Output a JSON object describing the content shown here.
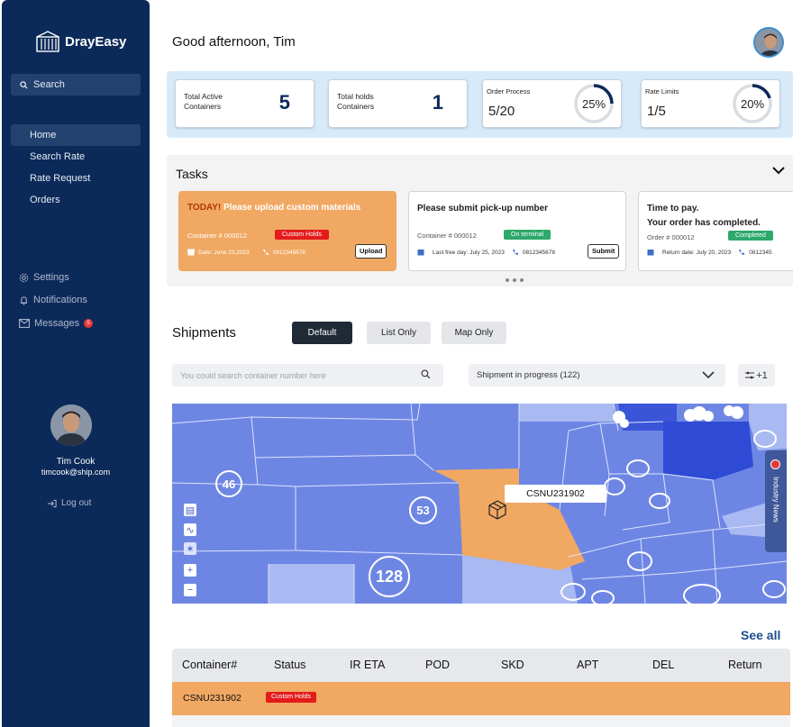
{
  "app": {
    "name": "DrayEasy"
  },
  "sidebar": {
    "search_label": "Search",
    "nav": [
      {
        "label": "Home",
        "active": true
      },
      {
        "label": "Search Rate"
      },
      {
        "label": "Rate Request"
      },
      {
        "label": "Orders"
      }
    ],
    "settings_label": "Settings",
    "notifications_label": "Notifications",
    "messages_label": "Messages",
    "messages_badge": "5",
    "user": {
      "name": "Tim Cook",
      "email": "timcook@ship.com"
    },
    "logout_label": "Log out"
  },
  "header": {
    "greeting": "Good afternoon, Tim"
  },
  "stats": [
    {
      "label": "Total Active Containers",
      "value": "5"
    },
    {
      "label": "Total holds Containers",
      "value": "1"
    },
    {
      "label": "Order Process",
      "value": "5/20",
      "percent_text": "25%",
      "percent": 25
    },
    {
      "label": "Rate Limits",
      "value": "1/5",
      "percent_text": "20%",
      "percent": 20
    }
  ],
  "tasks": {
    "title": "Tasks",
    "items": [
      {
        "prefix": "TODAY!",
        "title": "Please upload custom materials",
        "container": "Container # 000012",
        "status": "Custom Holds",
        "date": "Date: June 23,2023",
        "phone": "0812345678",
        "button": "Upload"
      },
      {
        "title": "Please submit pick-up number",
        "container": "Container # 000012",
        "status": "On terminal",
        "date": "Last free day: July 25, 2023",
        "phone": "0812345678",
        "button": "Submit"
      },
      {
        "title": "Time to pay.",
        "title2": "Your order has completed.",
        "container": "Order # 000012",
        "status": "Completed",
        "date": "Return date: July 20, 2023",
        "phone": "0812345"
      }
    ]
  },
  "shipments": {
    "title": "Shipments",
    "tabs": [
      "Default",
      "List Only",
      "Map Only"
    ],
    "search_placeholder": "You could search container number here",
    "filter_value": "Shipment in progress (122)",
    "filter_extra": "+1",
    "map": {
      "clusters": [
        "46",
        "53",
        "128"
      ],
      "tooltip": "CSNU231902",
      "news_label": "Industry News"
    },
    "see_all": "See all",
    "columns": [
      "Container#",
      "Status",
      "IR ETA",
      "POD",
      "SKD",
      "APT",
      "DEL",
      "Return"
    ],
    "rows": [
      {
        "container": "CSNU231902",
        "status": "Custom Holds"
      }
    ]
  },
  "colors": {
    "sidebar": "#0c2a59",
    "accent_orange": "#f0a862",
    "hold_red": "#e31b1b",
    "terminal_green": "#2ea86b",
    "map_blue": "#6e86e3"
  }
}
